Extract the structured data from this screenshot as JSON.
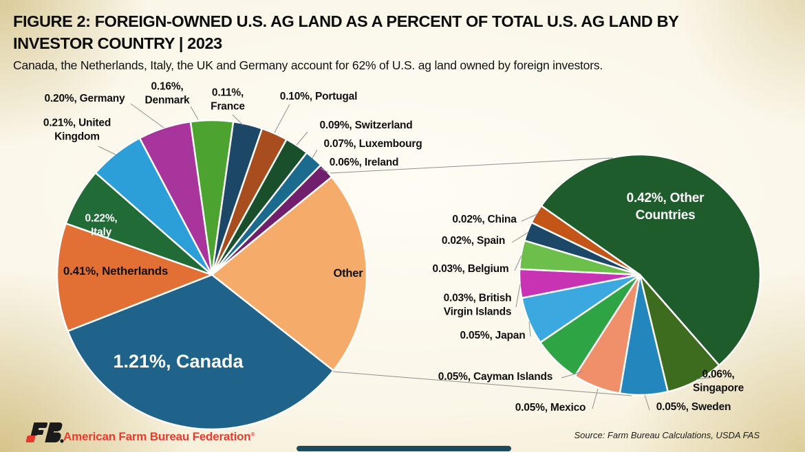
{
  "title_line1": "FIGURE 2: FOREIGN-OWNED U.S. AG LAND AS A PERCENT OF TOTAL U.S. AG LAND BY",
  "title_line2": "INVESTOR COUNTRY | 2023",
  "subtitle": "Canada, the Netherlands, Italy, the UK and Germany account for 62% of U.S. ag land owned by foreign investors.",
  "footer": {
    "org": "American Farm Bureau Federation",
    "reg_mark": "®",
    "source": "Source: Farm Bureau Calculations, USDA FAS",
    "brand_red": "#ee3a2e",
    "logo_black": "#1a1a1a",
    "logo_red": "#e8392e"
  },
  "chart_data": [
    {
      "type": "pie",
      "name": "foreign-owned-share-by-country",
      "unit": "percent of total U.S. ag land",
      "start_angle_deg": -7.95,
      "slices": [
        {
          "label": "Denmark",
          "value": 0.16,
          "label_text": "0.16%,\nDenmark",
          "color": "#4da32f"
        },
        {
          "label": "France",
          "value": 0.11,
          "label_text": "0.11%,\nFrance",
          "color": "#1d4766"
        },
        {
          "label": "Portugal",
          "value": 0.1,
          "label_text": "0.10%, Portugal",
          "color": "#a84d1d"
        },
        {
          "label": "Switzerland",
          "value": 0.09,
          "label_text": "0.09%, Switzerland",
          "color": "#19502b"
        },
        {
          "label": "Luxembourg",
          "value": 0.07,
          "label_text": "0.07%, Luxembourg",
          "color": "#1b6b8f"
        },
        {
          "label": "Ireland",
          "value": 0.06,
          "label_text": "0.06%, Ireland",
          "color": "#701f6d"
        },
        {
          "label": "Other",
          "value": 0.78,
          "label_text": "Other",
          "color": "#f5ab69"
        },
        {
          "label": "Canada",
          "value": 1.21,
          "label_text": "1.21%, Canada",
          "color": "#20638a"
        },
        {
          "label": "Netherlands",
          "value": 0.41,
          "label_text": "0.41%, Netherlands",
          "color": "#e26f33"
        },
        {
          "label": "Italy",
          "value": 0.22,
          "label_text": "0.22%,\nItaly",
          "color": "#206b36"
        },
        {
          "label": "United Kingdom",
          "value": 0.21,
          "label_text": "0.21%, United\nKingdom",
          "color": "#2d9fd8"
        },
        {
          "label": "Germany",
          "value": 0.2,
          "label_text": "0.20%, Germany",
          "color": "#a8359c"
        }
      ]
    },
    {
      "type": "pie",
      "name": "other-countries-breakout",
      "unit": "percent of total U.S. ag land",
      "start_angle_deg": 305,
      "slices": [
        {
          "label": "Other Countries",
          "value": 0.42,
          "label_text": "0.42%, Other\nCountries",
          "color": "#1e5c2b"
        },
        {
          "label": "Singapore",
          "value": 0.06,
          "label_text": "0.06%,\nSingapore",
          "color": "#3d6c1e"
        },
        {
          "label": "Sweden",
          "value": 0.05,
          "label_text": "0.05%, Sweden",
          "color": "#2386bd"
        },
        {
          "label": "Mexico",
          "value": 0.05,
          "label_text": "0.05%, Mexico",
          "color": "#ef906a"
        },
        {
          "label": "Cayman Islands",
          "value": 0.05,
          "label_text": "0.05%, Cayman Islands",
          "color": "#2fa444"
        },
        {
          "label": "Japan",
          "value": 0.05,
          "label_text": "0.05%, Japan",
          "color": "#3ba8e0"
        },
        {
          "label": "British Virgin Islands",
          "value": 0.03,
          "label_text": "0.03%, British\nVirgin Islands",
          "color": "#c733b3"
        },
        {
          "label": "Belgium",
          "value": 0.03,
          "label_text": "0.03%, Belgium",
          "color": "#6cbf4a"
        },
        {
          "label": "Spain",
          "value": 0.02,
          "label_text": "0.02%, Spain",
          "color": "#1d4766"
        },
        {
          "label": "China",
          "value": 0.02,
          "label_text": "0.02%, China",
          "color": "#c25517"
        }
      ]
    }
  ]
}
